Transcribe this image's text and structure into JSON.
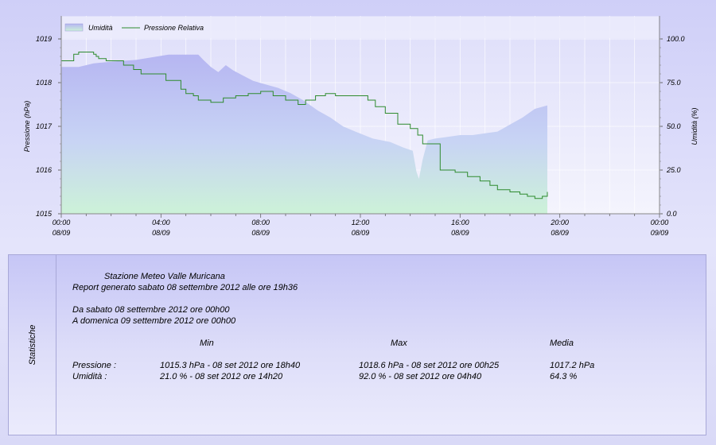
{
  "chart_data": {
    "type": "line",
    "legend": {
      "placement": "top-left",
      "entries": [
        "Umidità",
        "Pressione Relativa"
      ]
    },
    "x_axis": {
      "ticks": [
        {
          "time": "00:00",
          "date": "08/09"
        },
        {
          "time": "04:00",
          "date": "08/09"
        },
        {
          "time": "08:00",
          "date": "08/09"
        },
        {
          "time": "12:00",
          "date": "08/09"
        },
        {
          "time": "16:00",
          "date": "08/09"
        },
        {
          "time": "20:00",
          "date": "08/09"
        },
        {
          "time": "00:00",
          "date": "09/09"
        }
      ]
    },
    "y_left": {
      "label": "Pressione (hPa)",
      "ticks": [
        "1015",
        "1016",
        "1017",
        "1018",
        "1019"
      ],
      "range": [
        1015,
        1019
      ]
    },
    "y_right": {
      "label": "Umidità (%)",
      "ticks": [
        "0.0",
        "25.0",
        "50.0",
        "75.0",
        "100.0"
      ],
      "range": [
        0,
        100
      ]
    },
    "grid": true,
    "x_range_hours": [
      0,
      24
    ],
    "series": [
      {
        "name": "Umidità",
        "type": "area",
        "axis": "right",
        "color": "#b6b6f2",
        "x": [
          0,
          0.7,
          1.3,
          2,
          3,
          4.3,
          4.8,
          5.5,
          5.7,
          6,
          6.3,
          6.6,
          6.9,
          7.3,
          7.7,
          8.2,
          8.7,
          9.2,
          9.7,
          10.3,
          10.8,
          11.3,
          11.8,
          12.5,
          13.2,
          13.7,
          14.1,
          14.25,
          14.35,
          14.5,
          14.7,
          15,
          15.5,
          16,
          16.5,
          17,
          17.5,
          18,
          18.5,
          19,
          19.5
        ],
        "y": [
          84,
          84,
          86,
          87,
          88,
          91,
          91,
          91,
          88,
          84,
          81,
          85,
          82,
          79,
          76,
          74,
          72,
          69,
          65,
          59,
          55,
          50,
          47,
          43,
          41,
          38,
          36,
          24,
          20,
          31,
          42,
          43,
          44,
          45,
          45,
          46,
          47,
          51,
          55,
          60,
          62
        ]
      },
      {
        "name": "Pressione Relativa",
        "type": "line",
        "axis": "left",
        "color": "#2e8b2e",
        "x": [
          0,
          0.3,
          0.5,
          0.7,
          1.3,
          1.4,
          1.5,
          1.8,
          2.5,
          2.9,
          3.2,
          4.2,
          4.8,
          5,
          5.3,
          5.5,
          6,
          6.5,
          7,
          7.5,
          8,
          8.5,
          9,
          9.5,
          9.8,
          10.2,
          10.6,
          11,
          12,
          12.3,
          12.6,
          13,
          13.5,
          14,
          14.3,
          14.5,
          15.2,
          15.8,
          16.3,
          16.8,
          17.2,
          17.5,
          18,
          18.4,
          18.7,
          19,
          19.3,
          19.5
        ],
        "y": [
          1018.5,
          1018.5,
          1018.65,
          1018.7,
          1018.65,
          1018.6,
          1018.55,
          1018.5,
          1018.4,
          1018.3,
          1018.2,
          1018.05,
          1017.85,
          1017.75,
          1017.7,
          1017.6,
          1017.55,
          1017.65,
          1017.7,
          1017.75,
          1017.8,
          1017.7,
          1017.6,
          1017.5,
          1017.6,
          1017.7,
          1017.75,
          1017.7,
          1017.7,
          1017.6,
          1017.45,
          1017.3,
          1017.05,
          1016.95,
          1016.8,
          1016.6,
          1016.0,
          1015.95,
          1015.85,
          1015.75,
          1015.65,
          1015.55,
          1015.5,
          1015.45,
          1015.4,
          1015.35,
          1015.4,
          1015.5
        ]
      }
    ]
  },
  "stats": {
    "side_label": "Statistiche",
    "station": "Stazione Meteo Valle Muricana",
    "report": "Report generato sabato 08 settembre 2012 alle ore 19h36",
    "from": "Da sabato 08 settembre 2012 ore 00h00",
    "to": "A domenica 09 settembre 2012 ore 00h00",
    "col_min": "Min",
    "col_max": "Max",
    "col_avg": "Media",
    "rows": [
      {
        "label": "Pressione :",
        "min": "1015.3 hPa - 08 set 2012 ore 18h40",
        "max": "1018.6 hPa - 08 set 2012 ore 00h25",
        "avg": "1017.2 hPa"
      },
      {
        "label": "Umidità :",
        "min": "21.0 % - 08 set 2012 ore 14h20",
        "max": "92.0 % - 08 set 2012 ore 04h40",
        "avg": "64.3 %"
      }
    ]
  }
}
